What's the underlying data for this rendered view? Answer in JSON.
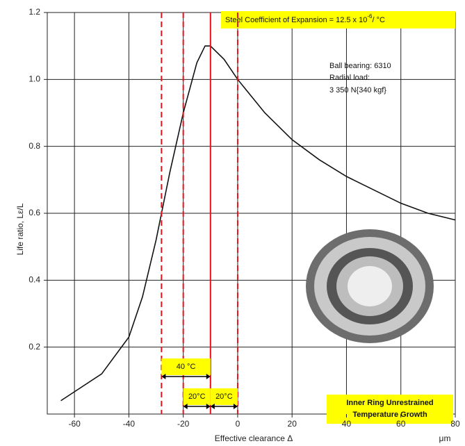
{
  "chart_data": {
    "type": "line",
    "x_label": "Effective clearance Δ",
    "x_unit": "μm",
    "y_label": "Life ratio, Lε/L",
    "x": [
      -65,
      -50,
      -40,
      -35,
      -30,
      -25,
      -20,
      -15,
      -12,
      -10,
      -5,
      0,
      10,
      20,
      30,
      40,
      50,
      60,
      70,
      80
    ],
    "series": [
      {
        "color": "#111111",
        "values": [
          0.04,
          0.12,
          0.23,
          0.35,
          0.52,
          0.72,
          0.9,
          1.05,
          1.1,
          1.1,
          1.06,
          1.0,
          0.9,
          0.82,
          0.76,
          0.71,
          0.67,
          0.63,
          0.6,
          0.58
        ]
      }
    ],
    "xlim": [
      -70,
      80
    ],
    "ylim": [
      0,
      1.2
    ],
    "xticks": [
      -60,
      -40,
      -20,
      0,
      20,
      40,
      60,
      80
    ],
    "yticks": [
      0.2,
      0.4,
      0.6,
      {
        "value": 1,
        "label": "1.0"
      },
      0.8,
      1.2
    ],
    "grid": true,
    "reference_lines": [
      {
        "x": -28,
        "style": "dashed",
        "color": "#e8101a"
      },
      {
        "x": -20,
        "style": "dashed",
        "color": "#e8101a"
      },
      {
        "x": -10,
        "style": "solid",
        "color": "#e8101a"
      },
      {
        "x": 0,
        "style": "dashed",
        "color": "#e8101a"
      }
    ],
    "annotations": {
      "expansion": {
        "text": "Steel Coefficient of Expansion = 12.5 x 10",
        "superscript": "-6",
        "suffix": "/ °C"
      },
      "bearing": [
        "Ball bearing: 6310",
        "Radial load:",
        "3 350 N{340 kgf}"
      ],
      "span_wide": "40 °C",
      "span_left": "20°C",
      "span_right": "20°C",
      "growth": [
        "Inner Ring Unrestrained",
        "Temperature Growth"
      ]
    }
  }
}
